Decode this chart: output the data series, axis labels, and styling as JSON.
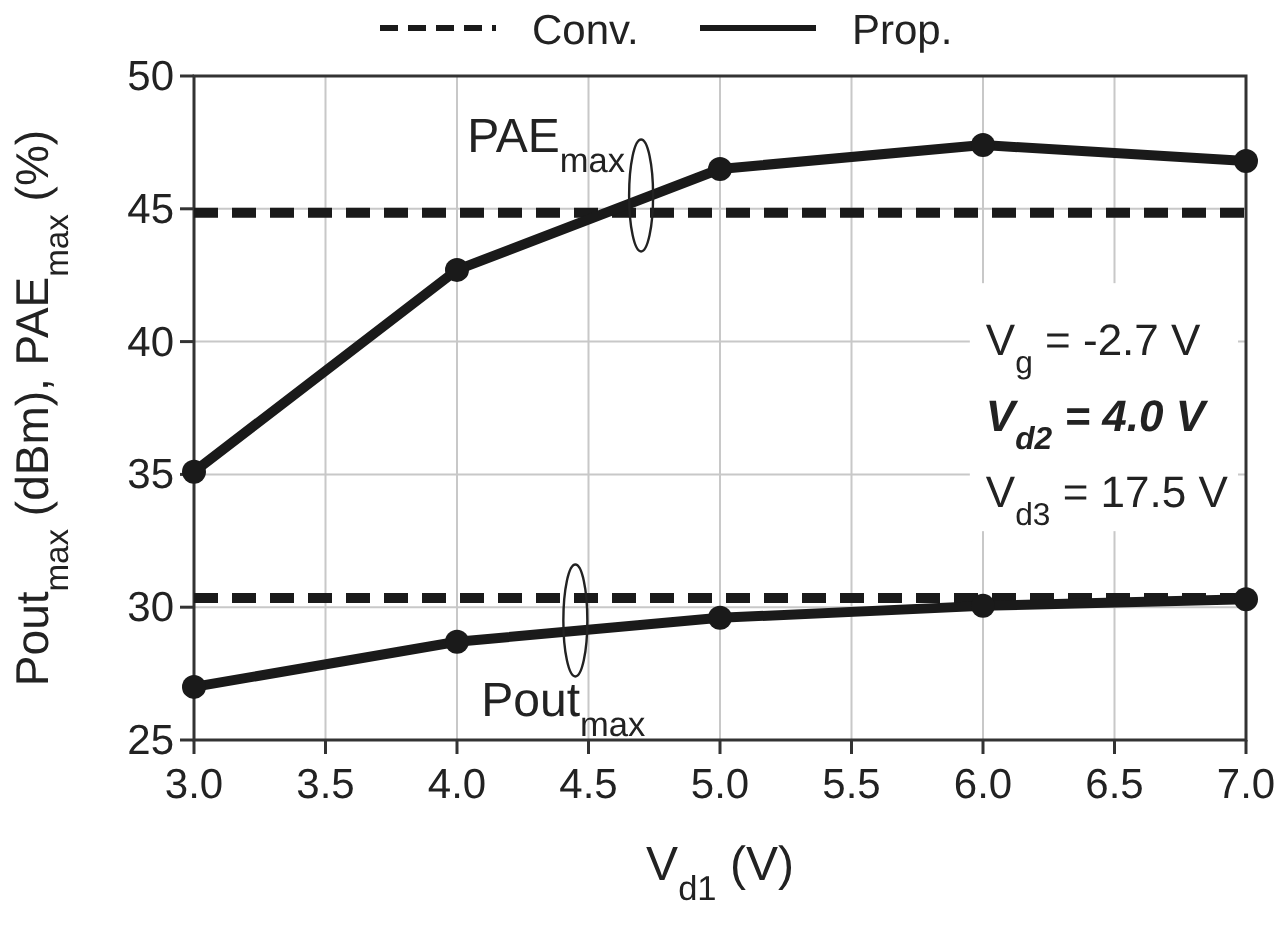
{
  "chart_data": {
    "type": "line",
    "xlabel": "V$_{d1}$ (V)",
    "ylabel": "Pout$_{max}$ (dBm), PAE$_{max}$ (%)",
    "x": [
      3,
      4,
      5,
      6,
      7
    ],
    "series": [
      {
        "name": "Conv.",
        "color": "#1a1a1a",
        "values": [
          44.85,
          44.85,
          44.85,
          44.85,
          44.85
        ],
        "marker": "none",
        "line_style": "dashed"
      },
      {
        "color": "#1a1a1a",
        "values": [
          30.35,
          30.35,
          30.35,
          30.35,
          30.35
        ],
        "marker": "none",
        "line_style": "dashed"
      },
      {
        "name": "Prop.",
        "color": "#1a1a1a",
        "values": [
          35.1,
          42.7,
          46.5,
          47.4,
          46.8
        ],
        "marker": "circle",
        "line_style": "solid"
      },
      {
        "color": "#1a1a1a",
        "values": [
          27.0,
          28.7,
          29.6,
          30.05,
          30.3
        ],
        "marker": "circle",
        "line_style": "solid"
      }
    ],
    "xlim": [
      3,
      7
    ],
    "xticks": [
      {
        "value": 3,
        "label": "3.0"
      },
      {
        "value": 3.5,
        "label": "3.5"
      },
      {
        "value": 4,
        "label": "4.0"
      },
      {
        "value": 4.5,
        "label": "4.5"
      },
      {
        "value": 5,
        "label": "5.0"
      },
      {
        "value": 5.5,
        "label": "5.5"
      },
      {
        "value": 6,
        "label": "6.0"
      },
      {
        "value": 6.5,
        "label": "6.5"
      },
      {
        "value": 7,
        "label": "7.0"
      }
    ],
    "ylim": [
      25,
      50
    ],
    "yticks": [
      25,
      30,
      35,
      40,
      45,
      50
    ],
    "grid": true,
    "legend": "top",
    "annotations": [
      {
        "text": "PAE$_{max}$",
        "x": 4.7,
        "y": 45.5
      },
      {
        "text": "Pout$_{max}$",
        "x": 4.45,
        "y": 29.5
      },
      "V$_{g}$ = -2.7 V",
      "V$_{d2}$ = 4.0 V",
      "V$_{d3}$ = 17.5 V"
    ]
  }
}
